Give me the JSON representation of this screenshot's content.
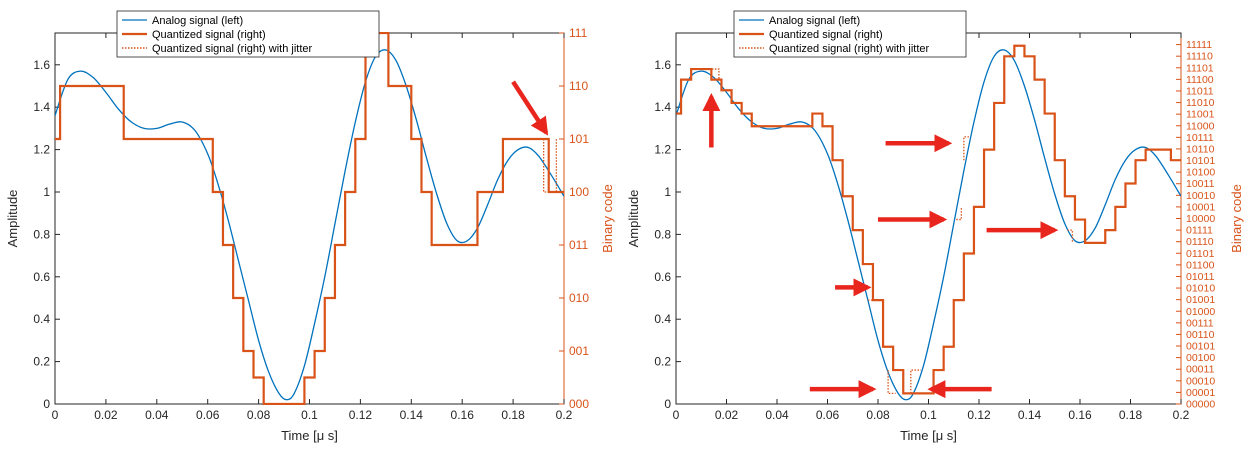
{
  "colors": {
    "analog": "#0072BD",
    "quantized": "#D95319",
    "arrow": "#E8261E",
    "axis": "#262626"
  },
  "chart_data": [
    {
      "type": "line",
      "panel": "left",
      "xlabel": "Time [μ s]",
      "ylabel_left": "Amplitude",
      "ylabel_right": "Binary code",
      "xlim": [
        0,
        0.2
      ],
      "ylim": [
        0,
        1.75
      ],
      "x_ticks": [
        "0",
        "0.02",
        "0.04",
        "0.06",
        "0.08",
        "0.1",
        "0.12",
        "0.14",
        "0.16",
        "0.18",
        "0.2"
      ],
      "y_ticks": [
        "0",
        "0.2",
        "0.4",
        "0.6",
        "0.8",
        "1",
        "1.2",
        "1.4",
        "1.6"
      ],
      "right_ticks": [
        "000",
        "001",
        "010",
        "011",
        "100",
        "101",
        "110",
        "111"
      ],
      "right_tick_values": [
        0,
        0.25,
        0.5,
        0.75,
        1.0,
        1.25,
        1.5,
        1.75
      ],
      "legend": [
        "Analog signal (left)",
        "Quantized signal (right)",
        "Quantized signal (right) with jitter"
      ],
      "legend_position": "top",
      "series": [
        {
          "name": "Analog signal (left)",
          "style": "solid",
          "x": [
            0,
            0.005,
            0.01,
            0.015,
            0.02,
            0.025,
            0.03,
            0.035,
            0.04,
            0.045,
            0.05,
            0.055,
            0.06,
            0.064,
            0.068,
            0.072,
            0.076,
            0.08,
            0.084,
            0.088,
            0.091,
            0.094,
            0.098,
            0.102,
            0.106,
            0.11,
            0.114,
            0.118,
            0.122,
            0.126,
            0.13,
            0.134,
            0.138,
            0.142,
            0.146,
            0.15,
            0.154,
            0.158,
            0.162,
            0.166,
            0.17,
            0.174,
            0.178,
            0.182,
            0.186,
            0.19,
            0.195,
            0.2
          ],
          "y": [
            1.36,
            1.53,
            1.57,
            1.54,
            1.47,
            1.39,
            1.33,
            1.3,
            1.3,
            1.32,
            1.33,
            1.29,
            1.18,
            1.04,
            0.87,
            0.68,
            0.49,
            0.3,
            0.15,
            0.05,
            0.02,
            0.05,
            0.18,
            0.38,
            0.6,
            0.85,
            1.1,
            1.33,
            1.52,
            1.64,
            1.67,
            1.62,
            1.5,
            1.34,
            1.16,
            0.99,
            0.85,
            0.77,
            0.77,
            0.83,
            0.94,
            1.06,
            1.15,
            1.2,
            1.21,
            1.17,
            1.08,
            0.98
          ]
        },
        {
          "name": "Quantized signal (right)",
          "style": "step",
          "x": [
            0,
            0.002,
            0.002,
            0.027,
            0.027,
            0.062,
            0.062,
            0.066,
            0.066,
            0.07,
            0.07,
            0.074,
            0.074,
            0.078,
            0.078,
            0.082,
            0.082,
            0.098,
            0.098,
            0.102,
            0.102,
            0.106,
            0.106,
            0.11,
            0.11,
            0.114,
            0.114,
            0.118,
            0.118,
            0.122,
            0.122,
            0.131,
            0.131,
            0.14,
            0.14,
            0.144,
            0.144,
            0.148,
            0.148,
            0.152,
            0.152,
            0.166,
            0.166,
            0.176,
            0.176,
            0.194,
            0.194,
            0.2
          ],
          "y": [
            1.25,
            1.25,
            1.5,
            1.5,
            1.25,
            1.25,
            1.0,
            1.0,
            0.75,
            0.75,
            0.5,
            0.5,
            0.25,
            0.25,
            0.125,
            0.125,
            0,
            0,
            0.125,
            0.125,
            0.25,
            0.25,
            0.5,
            0.5,
            0.75,
            0.75,
            1.0,
            1.0,
            1.25,
            1.25,
            1.75,
            1.75,
            1.5,
            1.5,
            1.25,
            1.25,
            1.0,
            1.0,
            0.75,
            0.75,
            0.75,
            0.75,
            1.0,
            1.0,
            1.25,
            1.25,
            1.0,
            1.0
          ]
        },
        {
          "name": "Quantized signal (right) with jitter",
          "style": "dotted",
          "x": [
            0.192,
            0.192,
            0.197,
            0.197
          ],
          "y": [
            1.25,
            1.0,
            1.0,
            1.25
          ]
        }
      ],
      "arrows": [
        {
          "from": [
            0.18,
            1.52
          ],
          "to": [
            0.193,
            1.28
          ]
        }
      ]
    },
    {
      "type": "line",
      "panel": "right",
      "xlabel": "Time [μ s]",
      "ylabel_left": "Amplitude",
      "ylabel_right": "Binary code",
      "xlim": [
        0,
        0.2
      ],
      "ylim": [
        0,
        1.75
      ],
      "x_ticks": [
        "0",
        "0.02",
        "0.04",
        "0.06",
        "0.08",
        "0.1",
        "0.12",
        "0.14",
        "0.16",
        "0.18",
        "0.2"
      ],
      "y_ticks": [
        "0",
        "0.2",
        "0.4",
        "0.6",
        "0.8",
        "1",
        "1.2",
        "1.4",
        "1.6"
      ],
      "right_ticks": [
        "00000",
        "00001",
        "00010",
        "00011",
        "00100",
        "00101",
        "00110",
        "00111",
        "01000",
        "01001",
        "01010",
        "01011",
        "01100",
        "01101",
        "01110",
        "01111",
        "10000",
        "10001",
        "10010",
        "10011",
        "10100",
        "10101",
        "10110",
        "10111",
        "11000",
        "11001",
        "11010",
        "11011",
        "11100",
        "11101",
        "11110",
        "11111"
      ],
      "right_tick_step": 0.0546875,
      "legend": [
        "Analog signal (left)",
        "Quantized signal (right)",
        "Quantized signal (right) with jitter"
      ],
      "legend_position": "top",
      "series": [
        {
          "name": "Analog signal (left)",
          "style": "solid",
          "x": [
            0,
            0.005,
            0.01,
            0.015,
            0.02,
            0.025,
            0.03,
            0.035,
            0.04,
            0.045,
            0.05,
            0.055,
            0.06,
            0.064,
            0.068,
            0.072,
            0.076,
            0.08,
            0.084,
            0.088,
            0.091,
            0.094,
            0.098,
            0.102,
            0.106,
            0.11,
            0.114,
            0.118,
            0.122,
            0.126,
            0.13,
            0.134,
            0.138,
            0.142,
            0.146,
            0.15,
            0.154,
            0.158,
            0.162,
            0.166,
            0.17,
            0.174,
            0.178,
            0.182,
            0.186,
            0.19,
            0.195,
            0.2
          ],
          "y": [
            1.36,
            1.53,
            1.57,
            1.54,
            1.47,
            1.39,
            1.33,
            1.3,
            1.3,
            1.32,
            1.33,
            1.29,
            1.18,
            1.04,
            0.87,
            0.68,
            0.49,
            0.3,
            0.15,
            0.05,
            0.02,
            0.05,
            0.18,
            0.38,
            0.6,
            0.85,
            1.1,
            1.33,
            1.52,
            1.64,
            1.67,
            1.62,
            1.5,
            1.34,
            1.16,
            0.99,
            0.85,
            0.77,
            0.77,
            0.83,
            0.94,
            1.06,
            1.15,
            1.2,
            1.21,
            1.17,
            1.08,
            0.98
          ]
        },
        {
          "name": "Quantized signal (right)",
          "style": "step",
          "step_x": [
            0,
            0.002,
            0.006,
            0.01,
            0.014,
            0.018,
            0.022,
            0.026,
            0.03,
            0.034,
            0.05,
            0.054,
            0.058,
            0.062,
            0.066,
            0.07,
            0.074,
            0.078,
            0.082,
            0.086,
            0.09,
            0.094,
            0.098,
            0.102,
            0.106,
            0.11,
            0.114,
            0.118,
            0.122,
            0.126,
            0.13,
            0.134,
            0.138,
            0.142,
            0.146,
            0.15,
            0.154,
            0.158,
            0.162,
            0.166,
            0.17,
            0.174,
            0.178,
            0.182,
            0.186,
            0.19,
            0.196
          ],
          "step_y": [
            1.37,
            1.53,
            1.58,
            1.58,
            1.53,
            1.48,
            1.42,
            1.37,
            1.31,
            1.31,
            1.31,
            1.37,
            1.31,
            1.15,
            0.98,
            0.82,
            0.66,
            0.49,
            0.27,
            0.16,
            0.05,
            0.05,
            0.05,
            0.16,
            0.27,
            0.49,
            0.71,
            0.93,
            1.2,
            1.42,
            1.64,
            1.69,
            1.64,
            1.53,
            1.37,
            1.15,
            0.98,
            0.87,
            0.76,
            0.76,
            0.82,
            0.93,
            1.04,
            1.15,
            1.2,
            1.2,
            1.15
          ],
          "step_end": 0.2
        },
        {
          "name": "Quantized signal (right) with jitter",
          "style": "dotted",
          "segments": [
            {
              "x": [
                0.013,
                0.017,
                0.017
              ],
              "y": [
                1.58,
                1.58,
                1.53
              ]
            },
            {
              "x": [
                0.076,
                0.078,
                0.078
              ],
              "y": [
                0.49,
                0.49,
                0.55
              ]
            },
            {
              "x": [
                0.084,
                0.084,
                0.087
              ],
              "y": [
                0.16,
                0.05,
                0.05
              ]
            },
            {
              "x": [
                0.093,
                0.093,
                0.097
              ],
              "y": [
                0.05,
                0.16,
                0.16
              ]
            },
            {
              "x": [
                0.111,
                0.113,
                0.113
              ],
              "y": [
                0.87,
                0.87,
                0.93
              ]
            },
            {
              "x": [
                0.114,
                0.114,
                0.116
              ],
              "y": [
                1.15,
                1.26,
                1.26
              ]
            },
            {
              "x": [
                0.155,
                0.157,
                0.157
              ],
              "y": [
                0.82,
                0.82,
                0.76
              ]
            }
          ]
        }
      ],
      "arrows": [
        {
          "from": [
            0.014,
            1.21
          ],
          "to": [
            0.014,
            1.45
          ]
        },
        {
          "from": [
            0.083,
            1.23
          ],
          "to": [
            0.108,
            1.23
          ]
        },
        {
          "from": [
            0.08,
            0.87
          ],
          "to": [
            0.106,
            0.87
          ]
        },
        {
          "from": [
            0.063,
            0.55
          ],
          "to": [
            0.076,
            0.55
          ]
        },
        {
          "from": [
            0.053,
            0.07
          ],
          "to": [
            0.078,
            0.07
          ]
        },
        {
          "from": [
            0.125,
            0.07
          ],
          "to": [
            0.101,
            0.07
          ]
        },
        {
          "from": [
            0.123,
            0.82
          ],
          "to": [
            0.15,
            0.82
          ]
        }
      ]
    }
  ]
}
